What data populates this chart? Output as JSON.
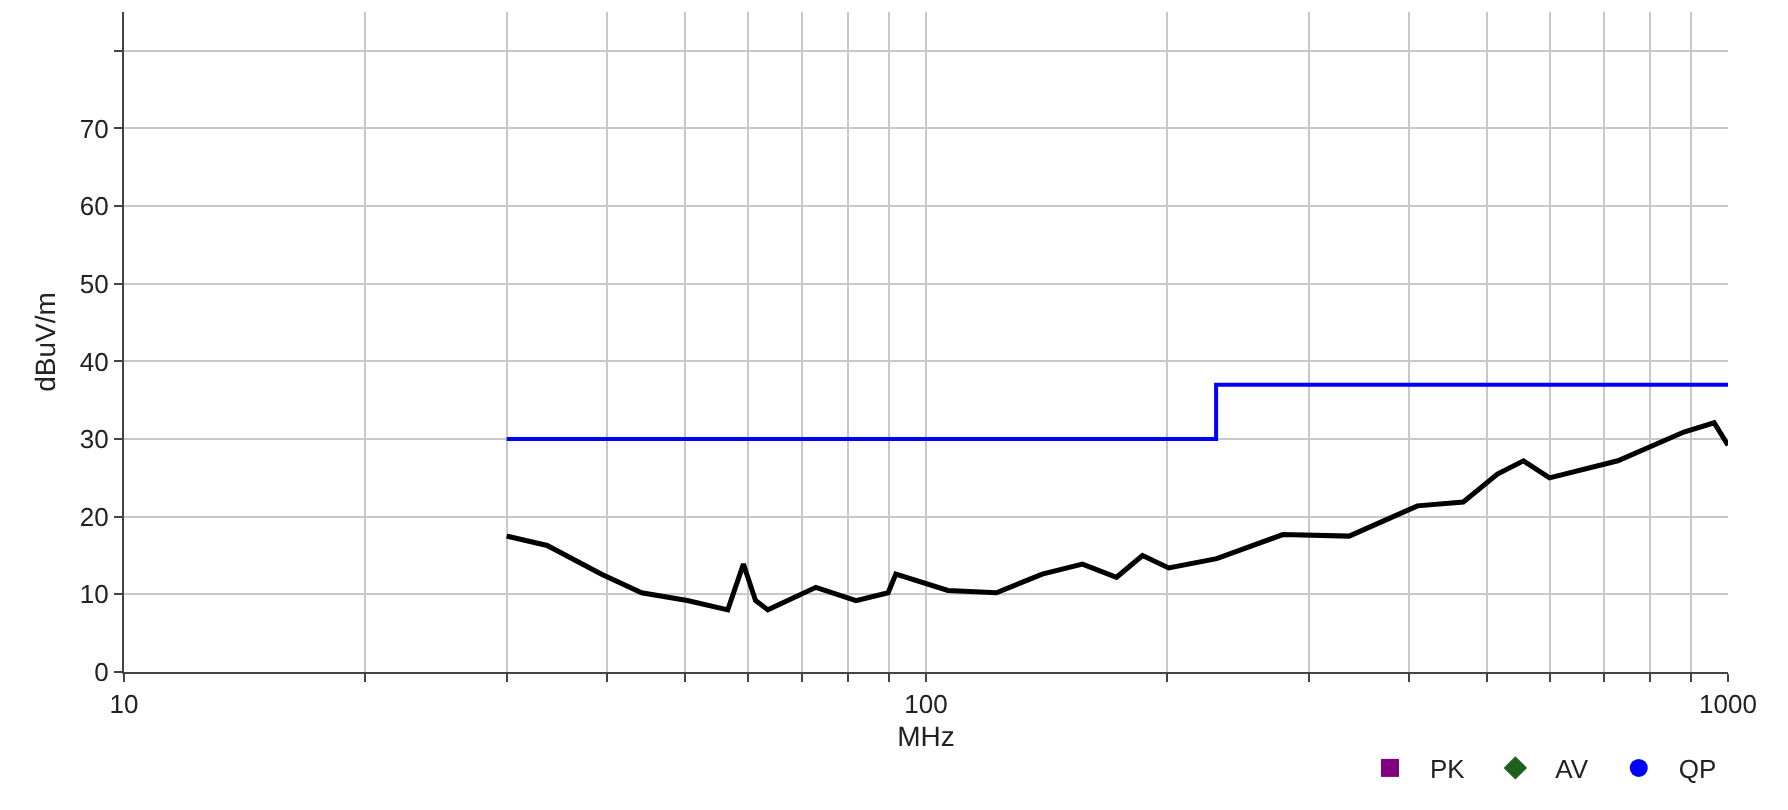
{
  "chart_data": {
    "type": "line",
    "xlabel": "MHz",
    "ylabel": "dBuV/m",
    "log": "x",
    "grid": true,
    "legend": "bottom right",
    "xlim": [
      10,
      1000
    ],
    "ylim": [
      0,
      85
    ],
    "xticks": [
      10,
      {
        "value": 20,
        "label": null
      },
      {
        "value": 30,
        "label": null
      },
      {
        "value": 40,
        "label": null
      },
      {
        "value": 50,
        "label": null
      },
      {
        "value": 60,
        "label": null
      },
      {
        "value": 70,
        "label": null
      },
      {
        "value": 80,
        "label": null
      },
      {
        "value": 90,
        "label": null
      },
      100,
      {
        "value": 200,
        "label": null
      },
      {
        "value": 300,
        "label": null
      },
      {
        "value": 400,
        "label": null
      },
      {
        "value": 500,
        "label": null
      },
      {
        "value": 600,
        "label": null
      },
      {
        "value": 700,
        "label": null
      },
      {
        "value": 800,
        "label": null
      },
      {
        "value": 900,
        "label": null
      },
      1000
    ],
    "yticks": [
      0,
      10,
      20,
      30,
      40,
      50,
      60,
      70,
      {
        "value": 80,
        "label": null
      }
    ],
    "series": [
      {
        "color": "#000000",
        "x": [
          30.0,
          33.7,
          39.4,
          44.2,
          50.4,
          56.6,
          59.2,
          61.3,
          63.5,
          72.9,
          81.8,
          89.7,
          91.7,
          106.5,
          122.4,
          139.6,
          156.7,
          172.8,
          186.2,
          200.7,
          230.4,
          278.6,
          337,
          410,
          467.7,
          515.8,
          555.9,
          599,
          728.8,
          881,
          961,
          1000
        ],
        "values": [
          17.5,
          16.3,
          12.6,
          10.2,
          9.2,
          8.0,
          13.9,
          9.2,
          8.0,
          10.9,
          9.2,
          10.2,
          12.6,
          10.5,
          10.2,
          12.6,
          13.9,
          12.2,
          15.0,
          13.4,
          14.6,
          17.7,
          17.5,
          21.4,
          21.9,
          25.5,
          27.2,
          25.0,
          27.2,
          30.9,
          32.1,
          29.2
        ]
      },
      {
        "color": "#0000ff",
        "x": [
          30,
          230,
          230,
          1000
        ],
        "values": [
          30,
          30,
          37,
          37
        ]
      },
      {
        "name": "PK",
        "type": "scatter",
        "marker": "square",
        "color": "#800080"
      },
      {
        "name": "AV",
        "type": "scatter",
        "marker": "diamond",
        "color": "#1f5f1f"
      },
      {
        "name": "QP",
        "type": "scatter",
        "marker": "circle",
        "color": "#0000ff"
      }
    ]
  }
}
